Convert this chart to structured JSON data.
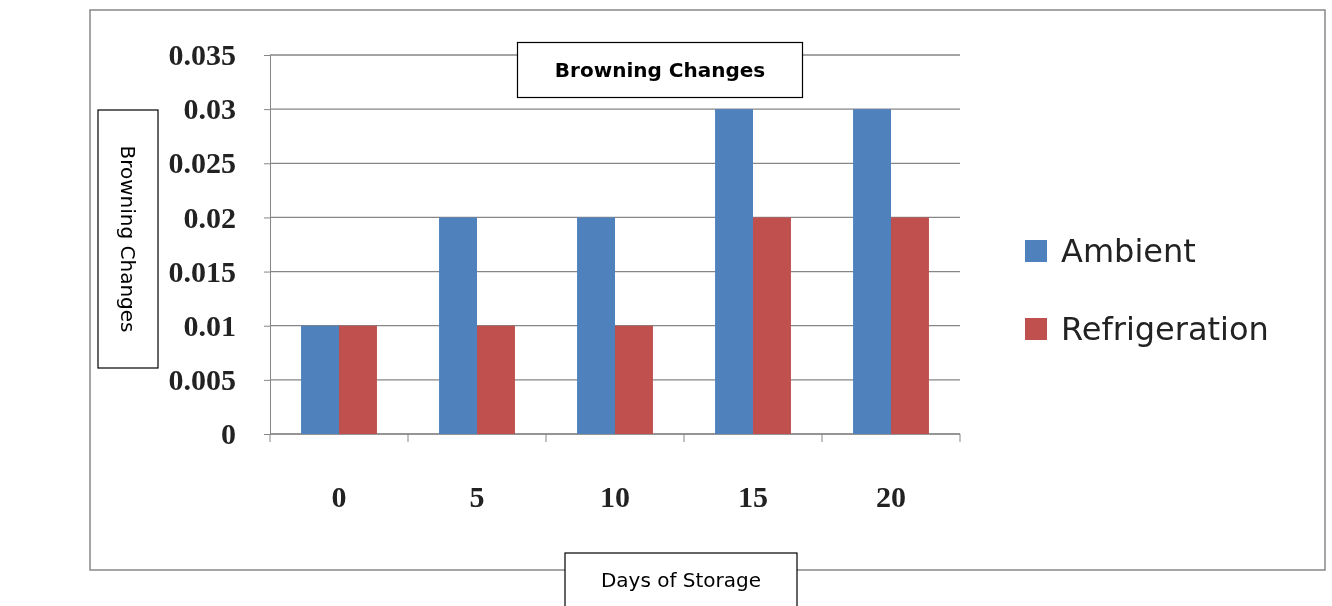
{
  "chart_data": {
    "type": "bar",
    "title": "Browning Changes",
    "xlabel": "Days of Storage",
    "ylabel": "Browning Changes",
    "categories": [
      "0",
      "5",
      "10",
      "15",
      "20"
    ],
    "series": [
      {
        "name": "Ambient",
        "color": "#4f81bd",
        "values": [
          0.01,
          0.02,
          0.02,
          0.03,
          0.03
        ]
      },
      {
        "name": "Refrigeration",
        "color": "#c0504d",
        "values": [
          0.01,
          0.01,
          0.01,
          0.02,
          0.02
        ]
      }
    ],
    "ylim": [
      0,
      0.035
    ],
    "yticks": [
      0,
      0.005,
      0.01,
      0.015,
      0.02,
      0.025,
      0.03,
      0.035
    ],
    "grid": "y",
    "legend": "right"
  }
}
